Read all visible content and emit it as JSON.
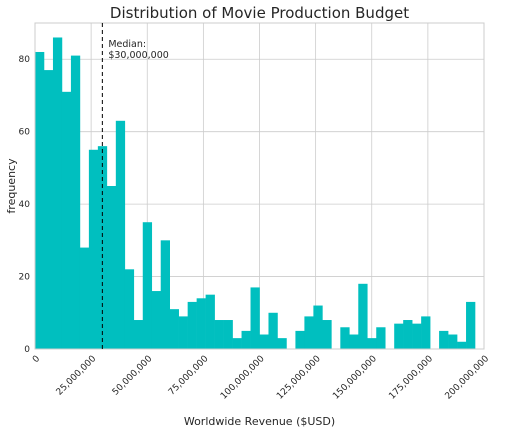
{
  "chart_data": {
    "type": "bar",
    "title": "Distribution of Movie Production Budget",
    "xlabel": "Worldwide Revenue ($USD)",
    "ylabel": "frequency",
    "xlim": [
      0,
      200000000
    ],
    "ylim": [
      0,
      90
    ],
    "grid": true,
    "bar_color": "#00bfbf",
    "bin_width": 4000000,
    "bin_starts": [
      0,
      4000000,
      8000000,
      12000000,
      16000000,
      20000000,
      24000000,
      28000000,
      32000000,
      36000000,
      40000000,
      44000000,
      48000000,
      52000000,
      56000000,
      60000000,
      64000000,
      68000000,
      72000000,
      76000000,
      80000000,
      84000000,
      88000000,
      92000000,
      96000000,
      100000000,
      104000000,
      108000000,
      112000000,
      116000000,
      120000000,
      124000000,
      128000000,
      132000000,
      136000000,
      140000000,
      144000000,
      148000000,
      152000000,
      156000000,
      160000000,
      164000000,
      168000000,
      172000000,
      176000000,
      180000000,
      184000000,
      188000000,
      192000000,
      196000000
    ],
    "values": [
      82,
      77,
      86,
      71,
      81,
      28,
      55,
      56,
      45,
      63,
      22,
      8,
      35,
      16,
      30,
      11,
      9,
      13,
      14,
      15,
      8,
      8,
      3,
      5,
      17,
      4,
      10,
      3,
      0,
      5,
      9,
      12,
      8,
      0,
      6,
      4,
      18,
      3,
      6,
      0,
      7,
      8,
      7,
      9,
      0,
      5,
      4,
      2,
      13,
      0
    ],
    "x_ticks": [
      0,
      25000000,
      50000000,
      75000000,
      100000000,
      125000000,
      150000000,
      175000000,
      200000000
    ],
    "x_tick_labels": [
      "0",
      "25,000,000",
      "50,000,000",
      "75,000,000",
      "100,000,000",
      "125,000,000",
      "150,000,000",
      "175,000,000",
      "200,000,000"
    ],
    "y_ticks": [
      0,
      20,
      40,
      60,
      80
    ],
    "y_tick_labels": [
      "0",
      "20",
      "40",
      "60",
      "80"
    ],
    "median": {
      "value": 30000000,
      "label_line1": "Median:",
      "label_line2": "$30,000,000"
    }
  }
}
